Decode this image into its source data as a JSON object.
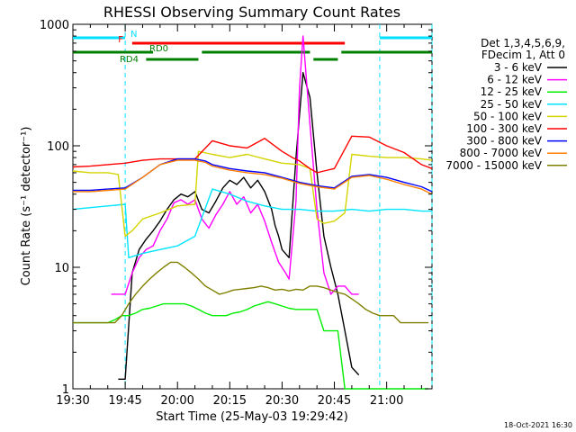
{
  "chart_data": {
    "type": "line",
    "title": "RHESSI Observing Summary Count Rates",
    "xlabel": "Start Time (25-May-03 19:29:42)",
    "ylabel": "Count Rate (s⁻¹ detector⁻¹)",
    "ylim": [
      1,
      1000
    ],
    "yscale": "log",
    "xlim_minutes": [
      0,
      103
    ],
    "x_tick_labels": [
      "19:30",
      "19:45",
      "20:00",
      "20:15",
      "20:30",
      "20:45",
      "21:00"
    ],
    "x_tick_minutes": [
      0,
      15,
      30,
      45,
      60,
      75,
      90
    ],
    "y_tick_labels": [
      "1",
      "10",
      "100",
      "1000"
    ],
    "y_tick_values": [
      1,
      10,
      100,
      1000
    ],
    "legend_header": [
      "Det 1,3,4,5,6,9,",
      "FDecim 1, Att 0"
    ],
    "legend_position": "right",
    "footer_date": "18-Oct-2021 16:30",
    "flag_bars": [
      {
        "label": "N",
        "color": "#00e0ff",
        "segments": [
          [
            0,
            15
          ],
          [
            88,
            103
          ]
        ]
      },
      {
        "label": "F",
        "color": "#ff0000",
        "segments": [
          [
            17,
            78
          ]
        ]
      },
      {
        "label": "RD0",
        "color": "#008000",
        "segments": [
          [
            0,
            23
          ],
          [
            37,
            68
          ],
          [
            77,
            103
          ]
        ]
      },
      {
        "label": "RD4",
        "color": "#008000",
        "segments": [
          [
            21,
            36
          ],
          [
            69,
            76
          ]
        ]
      }
    ],
    "night_markers_minutes": [
      15,
      88,
      103
    ],
    "series": [
      {
        "name": "3 - 6 keV",
        "color": "#000000",
        "x": [
          13,
          15,
          17,
          19,
          21,
          23,
          25,
          27,
          29,
          31,
          33,
          35,
          37,
          39,
          41,
          43,
          45,
          47,
          49,
          51,
          53,
          55,
          57,
          58,
          59,
          60,
          62,
          64,
          66,
          68,
          70,
          72,
          74,
          76,
          78,
          80,
          82
        ],
        "y": [
          1.2,
          1.2,
          9,
          14,
          17,
          20,
          24,
          30,
          36,
          40,
          38,
          42,
          30,
          28,
          35,
          45,
          52,
          48,
          55,
          45,
          52,
          42,
          30,
          22,
          18,
          14,
          12,
          80,
          400,
          250,
          60,
          18,
          10,
          6,
          3,
          1.5,
          1.3
        ]
      },
      {
        "name": "6 - 12 keV",
        "color": "#ff00ff",
        "x": [
          11,
          13,
          15,
          17,
          19,
          21,
          23,
          25,
          27,
          29,
          31,
          33,
          35,
          37,
          39,
          41,
          43,
          45,
          47,
          49,
          51,
          53,
          55,
          57,
          59,
          61,
          62,
          64,
          65,
          66,
          68,
          70,
          72,
          74,
          76,
          78,
          80,
          82
        ],
        "y": [
          6,
          6,
          6,
          9,
          12,
          14,
          15,
          20,
          25,
          34,
          36,
          33,
          36,
          25,
          21,
          27,
          33,
          42,
          33,
          38,
          28,
          33,
          24,
          16,
          11,
          9,
          8,
          35,
          300,
          800,
          150,
          30,
          9,
          6,
          7,
          7,
          6,
          6
        ]
      },
      {
        "name": "12 - 25 keV",
        "color": "#00ee00",
        "x": [
          0,
          2,
          4,
          6,
          8,
          10,
          12,
          14,
          16,
          18,
          20,
          22,
          24,
          26,
          28,
          30,
          32,
          34,
          36,
          38,
          40,
          42,
          44,
          46,
          48,
          50,
          52,
          54,
          56,
          58,
          60,
          62,
          64,
          66,
          68,
          70,
          72,
          74,
          76,
          78,
          80,
          82,
          84,
          86,
          88,
          90,
          92,
          94,
          96,
          98,
          100,
          102
        ],
        "y": [
          3.5,
          3.5,
          3.5,
          3.5,
          3.5,
          3.5,
          3.7,
          4,
          4,
          4.2,
          4.5,
          4.6,
          4.8,
          5,
          5,
          5,
          5,
          4.8,
          4.5,
          4.2,
          4,
          4,
          4,
          4.2,
          4.3,
          4.5,
          4.8,
          5,
          5.2,
          5,
          4.8,
          4.6,
          4.5,
          4.5,
          4.5,
          4.5,
          3,
          3,
          3,
          1,
          1,
          1,
          1,
          1,
          1,
          1,
          1,
          1,
          1,
          1,
          1,
          1
        ]
      },
      {
        "name": "25 - 50 keV",
        "color": "#00e5ff",
        "x": [
          0,
          5,
          10,
          15,
          16,
          20,
          25,
          30,
          35,
          40,
          45,
          50,
          55,
          60,
          65,
          70,
          75,
          80,
          85,
          90,
          95,
          100,
          103
        ],
        "y": [
          30,
          31,
          32,
          33,
          12,
          13,
          14,
          15,
          18,
          44,
          40,
          35,
          32,
          30,
          30,
          29,
          29,
          30,
          29,
          30,
          30,
          29,
          29
        ]
      },
      {
        "name": "50 - 100 keV",
        "color": "#d4d400",
        "x": [
          0,
          5,
          10,
          13,
          15,
          17,
          20,
          25,
          30,
          35,
          36,
          40,
          45,
          50,
          55,
          60,
          65,
          68,
          70,
          72,
          75,
          78,
          80,
          85,
          90,
          95,
          100,
          103
        ],
        "y": [
          62,
          60,
          60,
          58,
          18,
          20,
          25,
          28,
          32,
          33,
          90,
          85,
          80,
          85,
          78,
          72,
          70,
          65,
          25,
          23,
          24,
          28,
          85,
          82,
          80,
          80,
          78,
          76
        ]
      },
      {
        "name": "100 - 300 keV",
        "color": "#ff0000",
        "x": [
          0,
          5,
          10,
          15,
          20,
          25,
          30,
          35,
          40,
          45,
          50,
          55,
          60,
          63,
          65,
          68,
          70,
          72,
          75,
          80,
          85,
          90,
          95,
          100,
          103
        ],
        "y": [
          67,
          68,
          70,
          72,
          76,
          78,
          78,
          78,
          110,
          100,
          96,
          115,
          90,
          80,
          75,
          65,
          60,
          62,
          65,
          120,
          118,
          100,
          88,
          70,
          65
        ]
      },
      {
        "name": "300 - 800 keV",
        "color": "#0000ff",
        "x": [
          0,
          5,
          10,
          15,
          20,
          25,
          30,
          35,
          38,
          40,
          45,
          50,
          55,
          60,
          65,
          70,
          75,
          80,
          85,
          90,
          95,
          100,
          103
        ],
        "y": [
          43,
          43,
          44,
          45,
          55,
          70,
          78,
          78,
          75,
          70,
          65,
          62,
          60,
          55,
          50,
          47,
          45,
          56,
          58,
          55,
          50,
          46,
          42
        ]
      },
      {
        "name": "800 - 7000 keV",
        "color": "#ff8000",
        "x": [
          0,
          5,
          10,
          15,
          20,
          25,
          30,
          35,
          38,
          40,
          45,
          50,
          55,
          60,
          65,
          70,
          75,
          80,
          85,
          90,
          95,
          100,
          103
        ],
        "y": [
          42,
          42,
          43,
          44,
          55,
          70,
          76,
          76,
          73,
          68,
          63,
          60,
          58,
          54,
          49,
          46,
          44,
          55,
          57,
          53,
          48,
          44,
          40
        ]
      },
      {
        "name": "7000 - 15000 keV",
        "color": "#808000",
        "x": [
          0,
          3,
          6,
          9,
          12,
          14,
          16,
          18,
          20,
          22,
          24,
          26,
          28,
          30,
          32,
          34,
          36,
          38,
          40,
          42,
          44,
          46,
          48,
          50,
          52,
          54,
          56,
          58,
          60,
          62,
          64,
          66,
          68,
          70,
          72,
          74,
          76,
          78,
          80,
          82,
          84,
          86,
          88,
          90,
          92,
          94,
          96,
          98,
          100,
          102
        ],
        "y": [
          3.5,
          3.5,
          3.5,
          3.5,
          3.5,
          4,
          5,
          6,
          7,
          8,
          9,
          10,
          11,
          11,
          10,
          9,
          8,
          7,
          6.5,
          6,
          6.2,
          6.5,
          6.6,
          6.7,
          6.8,
          7,
          6.8,
          6.5,
          6.6,
          6.4,
          6.6,
          6.5,
          7,
          7,
          6.8,
          6.5,
          6.2,
          6,
          5.5,
          5,
          4.5,
          4.2,
          4,
          4,
          4,
          3.5,
          3.5,
          3.5,
          3.5,
          3.5
        ]
      }
    ]
  }
}
